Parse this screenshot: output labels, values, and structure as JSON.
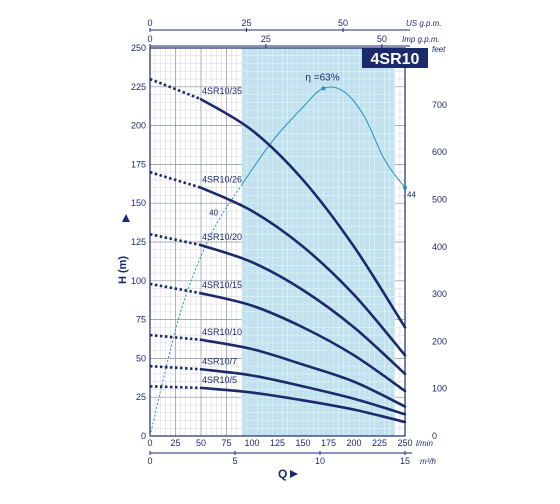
{
  "chart_data": {
    "type": "line",
    "title": "4SR10",
    "ylabel": "H (m)",
    "xlabel": "Q",
    "ylabel_right": "feet",
    "x_unit": "l/min",
    "x2_unit": "m³/h",
    "top1_unit": "US g.p.m.",
    "top2_unit": "Imp g.p.m.",
    "efficiency_label": "η =63%",
    "efficiency_start_label": "40",
    "efficiency_end_label": "44",
    "ylim": [
      0,
      250
    ],
    "xlim": [
      0,
      250
    ],
    "y_ticks": [
      0,
      25,
      50,
      75,
      100,
      125,
      150,
      175,
      200,
      225,
      250
    ],
    "x_ticks": [
      0,
      25,
      50,
      75,
      100,
      125,
      150,
      175,
      200,
      225,
      250
    ],
    "x2_ticks": [
      0,
      5,
      10,
      15
    ],
    "top1_ticks": [
      0,
      25,
      50
    ],
    "top2_ticks": [
      0,
      25,
      50
    ],
    "right_ticks": [
      0,
      100,
      200,
      300,
      400,
      500,
      600,
      700
    ],
    "grid": true,
    "shaded_range": [
      90,
      240
    ],
    "efficiency_curve": {
      "x": [
        0,
        30,
        60,
        90,
        120,
        150,
        170,
        190,
        210,
        230,
        250
      ],
      "y": [
        0,
        80,
        130,
        162,
        190,
        212,
        224,
        222,
        206,
        178,
        160
      ]
    },
    "series": [
      {
        "name": "4SR10/35",
        "dotted": {
          "x": [
            0,
            50
          ],
          "y": [
            230,
            217
          ]
        },
        "solid": {
          "x": [
            50,
            100,
            150,
            200,
            250
          ],
          "y": [
            217,
            197,
            165,
            122,
            70
          ]
        }
      },
      {
        "name": "4SR10/26",
        "dotted": {
          "x": [
            0,
            50
          ],
          "y": [
            170,
            160
          ]
        },
        "solid": {
          "x": [
            50,
            100,
            150,
            200,
            250
          ],
          "y": [
            160,
            145,
            122,
            91,
            52
          ]
        }
      },
      {
        "name": "4SR10/20",
        "dotted": {
          "x": [
            0,
            50
          ],
          "y": [
            130,
            123
          ]
        },
        "solid": {
          "x": [
            50,
            100,
            150,
            200,
            250
          ],
          "y": [
            123,
            112,
            94,
            70,
            40
          ]
        }
      },
      {
        "name": "4SR10/15",
        "dotted": {
          "x": [
            0,
            50
          ],
          "y": [
            98,
            92
          ]
        },
        "solid": {
          "x": [
            50,
            100,
            150,
            200,
            250
          ],
          "y": [
            92,
            84,
            70,
            52,
            29
          ]
        }
      },
      {
        "name": "4SR10/10",
        "dotted": {
          "x": [
            0,
            50
          ],
          "y": [
            65,
            62
          ]
        },
        "solid": {
          "x": [
            50,
            100,
            150,
            200,
            250
          ],
          "y": [
            62,
            56,
            46,
            35,
            19
          ]
        }
      },
      {
        "name": "4SR10/7",
        "dotted": {
          "x": [
            0,
            50
          ],
          "y": [
            45,
            43
          ]
        },
        "solid": {
          "x": [
            50,
            100,
            150,
            200,
            250
          ],
          "y": [
            43,
            39,
            32,
            24,
            14
          ]
        }
      },
      {
        "name": "4SR10/5",
        "dotted": {
          "x": [
            0,
            50
          ],
          "y": [
            32,
            31
          ]
        },
        "solid": {
          "x": [
            50,
            100,
            150,
            200,
            250
          ],
          "y": [
            31,
            28,
            23,
            17,
            9
          ]
        }
      }
    ]
  }
}
